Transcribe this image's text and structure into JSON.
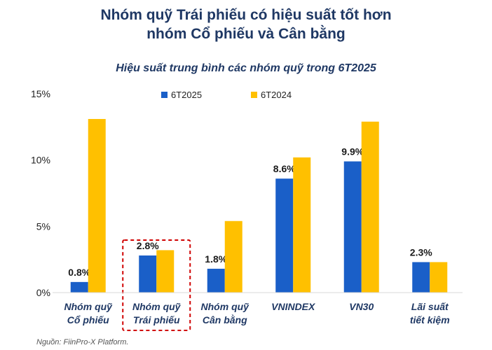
{
  "title_line1": "Nhóm quỹ Trái phiếu có hiệu suất tốt hơn",
  "title_line2": "nhóm Cổ phiếu và Cân bằng",
  "source": "Nguồn: FiinPro-X Platform.",
  "colors": {
    "series1": "#1a5fc8",
    "series2": "#ffc000",
    "highlight": "#d00000"
  },
  "chart_data": {
    "type": "bar",
    "title": "Hiệu suất trung bình các nhóm quỹ trong 6T2025",
    "ylim": [
      0,
      15
    ],
    "yticks": [
      "0%",
      "5%",
      "10%",
      "15%"
    ],
    "ytick_values": [
      0,
      5,
      10,
      15
    ],
    "categories": [
      [
        "Nhóm quỹ",
        "Cổ phiếu"
      ],
      [
        "Nhóm quỹ",
        "Trái phiếu"
      ],
      [
        "Nhóm quỹ",
        "Cân bằng"
      ],
      [
        "VNINDEX"
      ],
      [
        "VN30"
      ],
      [
        "Lãi suất",
        "tiết kiệm"
      ]
    ],
    "series": [
      {
        "name": "6T2025",
        "values": [
          0.8,
          2.8,
          1.8,
          8.6,
          9.9,
          2.3
        ],
        "labels": [
          "0.8%",
          "2.8%",
          "1.8%",
          "8.6%",
          "9.9%",
          "2.3%"
        ]
      },
      {
        "name": "6T2024",
        "values": [
          13.1,
          3.2,
          5.4,
          10.2,
          12.9,
          2.3
        ]
      }
    ],
    "legend": "top",
    "grid": false,
    "highlighted_category": 1
  }
}
